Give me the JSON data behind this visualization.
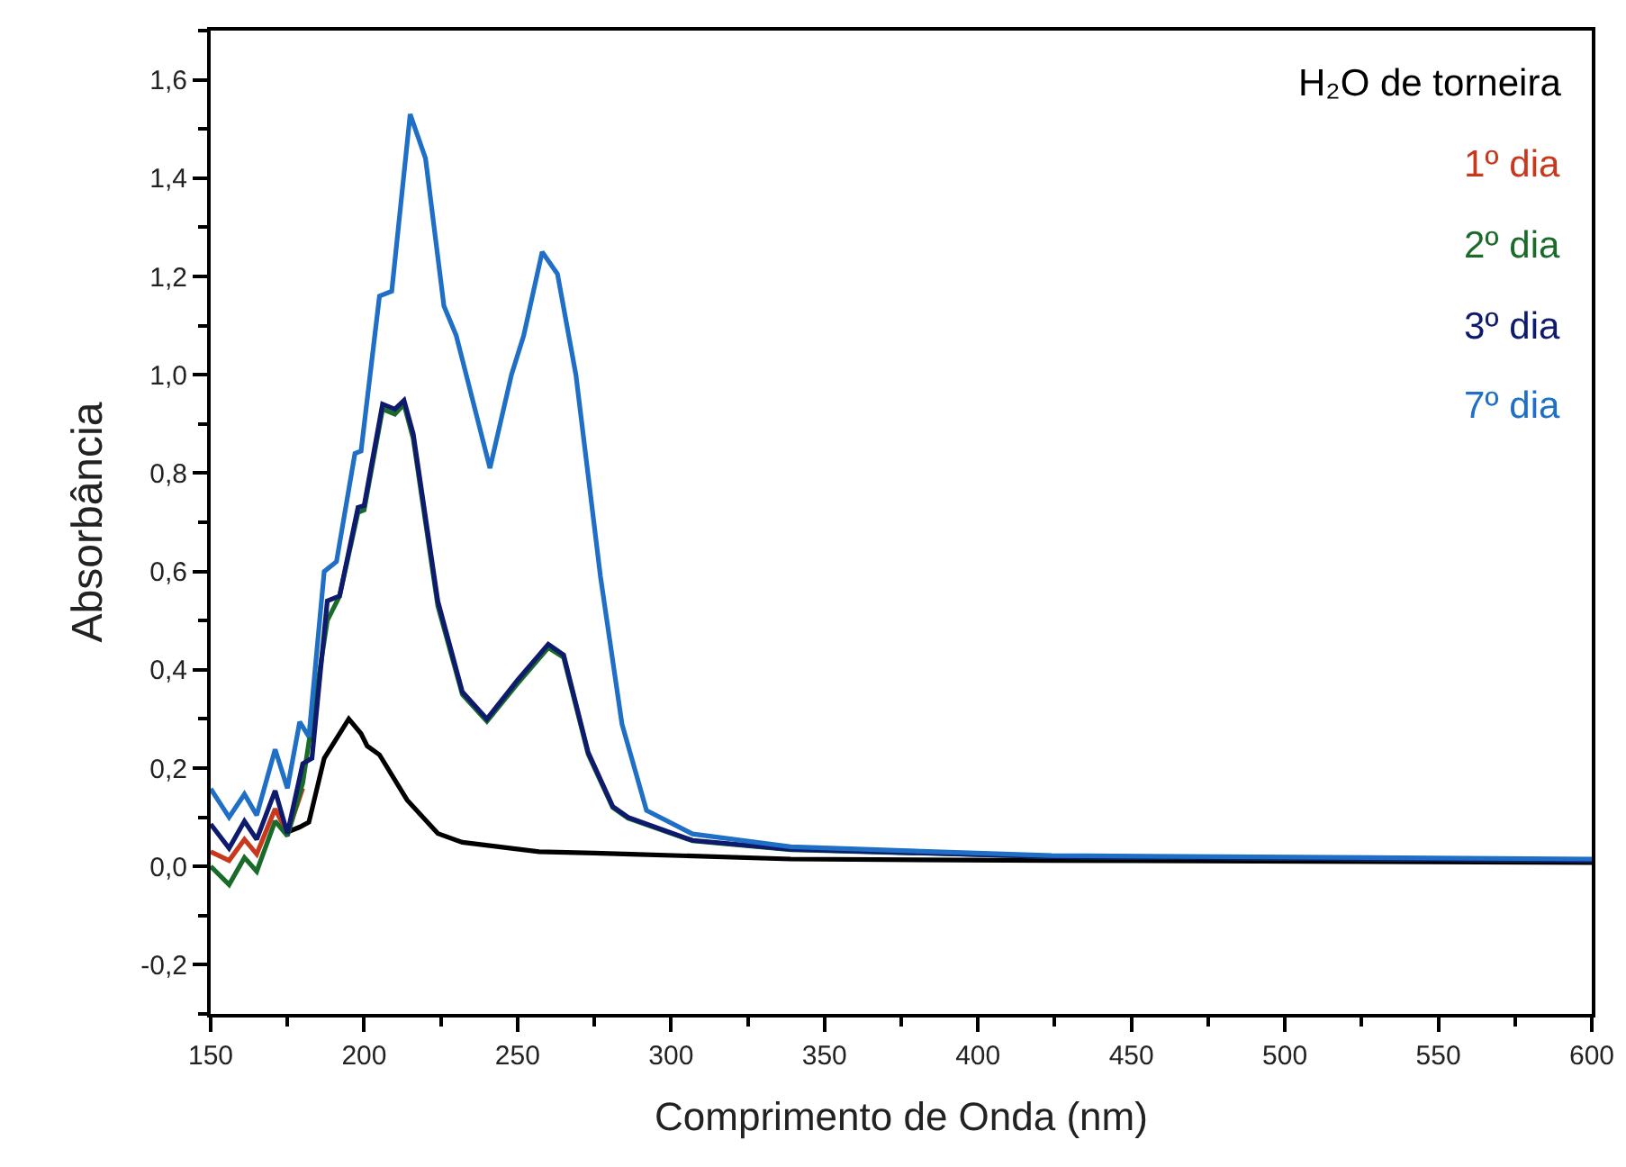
{
  "chart_data": {
    "type": "line",
    "xlabel": "Comprimento de Onda (nm)",
    "ylabel": "Absorbância",
    "xlim": [
      150,
      600
    ],
    "xticks": [
      150,
      200,
      250,
      300,
      350,
      400,
      450,
      500,
      550,
      600
    ],
    "ylim": [
      -0.3,
      1.7
    ],
    "yticks": [
      {
        "value": -0.2,
        "label": "-0,2"
      },
      {
        "value": 0,
        "label": "0,0"
      },
      {
        "value": 0.2,
        "label": "0,2"
      },
      {
        "value": 0.4,
        "label": "0,4"
      },
      {
        "value": 0.6,
        "label": "0,6"
      },
      {
        "value": 0.8,
        "label": "0,8"
      },
      {
        "value": 1.0,
        "label": "1,0"
      },
      {
        "value": 1.2,
        "label": "1,2"
      },
      {
        "value": 1.4,
        "label": "1,4"
      },
      {
        "value": 1.6,
        "label": "1,6"
      }
    ],
    "grid": false,
    "legend": "top right",
    "series": [
      {
        "name": "H₂O de torneira",
        "color": "#000000",
        "x": [
          175,
          179,
          182,
          187,
          195,
          199,
          201,
          205,
          214,
          224,
          232,
          257,
          275,
          287,
          339,
          424,
          600
        ],
        "values": [
          0.07,
          0.08,
          0.09,
          0.22,
          0.3,
          0.27,
          0.245,
          0.227,
          0.135,
          0.067,
          0.049,
          0.03,
          0.027,
          0.025,
          0.015,
          0.012,
          0.008
        ]
      },
      {
        "name": "1º dia",
        "color": "#c8381c",
        "x": [
          150,
          156,
          161,
          165,
          171,
          175,
          180
        ],
        "values": [
          0.03,
          0.012,
          0.055,
          0.025,
          0.117,
          0.067,
          0.159
        ]
      },
      {
        "name": "2º dia",
        "color": "#1a6b2a",
        "x": [
          150,
          156,
          161,
          165,
          171,
          175,
          180,
          188,
          192,
          198,
          200,
          206,
          210,
          213,
          216,
          224,
          232,
          240,
          250,
          260,
          265,
          273,
          281,
          286,
          307,
          339,
          424,
          600
        ],
        "values": [
          0.0,
          -0.037,
          0.018,
          -0.01,
          0.092,
          0.062,
          0.17,
          0.5,
          0.55,
          0.72,
          0.725,
          0.93,
          0.92,
          0.94,
          0.87,
          0.53,
          0.35,
          0.295,
          0.372,
          0.445,
          0.425,
          0.228,
          0.12,
          0.098,
          0.052,
          0.034,
          0.02,
          0.012
        ]
      },
      {
        "name": "3º dia",
        "color": "#0d1a6e",
        "x": [
          150,
          156,
          161,
          165,
          171,
          175,
          180,
          183,
          188,
          192,
          198,
          200,
          206,
          210,
          213,
          216,
          224,
          232,
          240,
          250,
          260,
          265,
          273,
          281,
          286,
          307,
          339,
          424,
          600
        ],
        "values": [
          0.086,
          0.037,
          0.092,
          0.055,
          0.154,
          0.067,
          0.209,
          0.22,
          0.54,
          0.55,
          0.73,
          0.734,
          0.94,
          0.93,
          0.948,
          0.88,
          0.54,
          0.355,
          0.3,
          0.379,
          0.452,
          0.43,
          0.232,
          0.122,
          0.1,
          0.053,
          0.035,
          0.02,
          0.012
        ]
      },
      {
        "name": "7º dia",
        "color": "#1f6fc6",
        "x": [
          150,
          156,
          161,
          165,
          171,
          175,
          179,
          182,
          187,
          191,
          197,
          199,
          205,
          209,
          215,
          220,
          226,
          230,
          241,
          248,
          252,
          258,
          263,
          269,
          277,
          284,
          292,
          307,
          339,
          424,
          600
        ],
        "values": [
          0.158,
          0.1,
          0.147,
          0.104,
          0.238,
          0.159,
          0.294,
          0.264,
          0.6,
          0.62,
          0.84,
          0.845,
          1.16,
          1.17,
          1.53,
          1.44,
          1.14,
          1.08,
          0.81,
          1.0,
          1.08,
          1.25,
          1.205,
          1.0,
          0.59,
          0.29,
          0.114,
          0.066,
          0.04,
          0.022,
          0.015
        ]
      }
    ]
  }
}
